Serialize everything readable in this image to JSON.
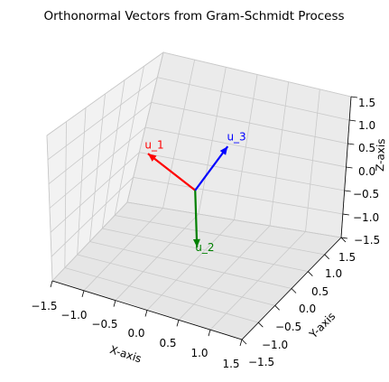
{
  "chart_data": {
    "type": "3d-quiver",
    "title": "Orthonormal Vectors from Gram-Schmidt Process",
    "xlabel": "X-axis",
    "ylabel": "Y-axis",
    "zlabel": "Z-axis",
    "xlim": [
      -1.5,
      1.5
    ],
    "ylim": [
      -1.5,
      1.5
    ],
    "zlim": [
      -1.5,
      1.5
    ],
    "xticks": [
      "−1.5",
      "−1.0",
      "−0.5",
      "0.0",
      "0.5",
      "1.0",
      "1.5"
    ],
    "yticks": [
      "−1.5",
      "−1.0",
      "−0.5",
      "0.0",
      "0.5",
      "1.0",
      "1.5"
    ],
    "zticks": [
      "−1.5",
      "−1.0",
      "−0.5",
      "0.0",
      "0.5",
      "1.0",
      "1.5"
    ],
    "grid": true,
    "origin": [
      0,
      0,
      0
    ],
    "vectors": [
      {
        "label": "u_1",
        "color": "#ff0000",
        "components": [
          -0.9,
          0.3,
          0.3
        ]
      },
      {
        "label": "u_2",
        "color": "#008000",
        "components": [
          0.4,
          -0.7,
          -0.6
        ]
      },
      {
        "label": "u_3",
        "color": "#0000ff",
        "components": [
          0.3,
          0.3,
          0.8
        ]
      }
    ]
  }
}
